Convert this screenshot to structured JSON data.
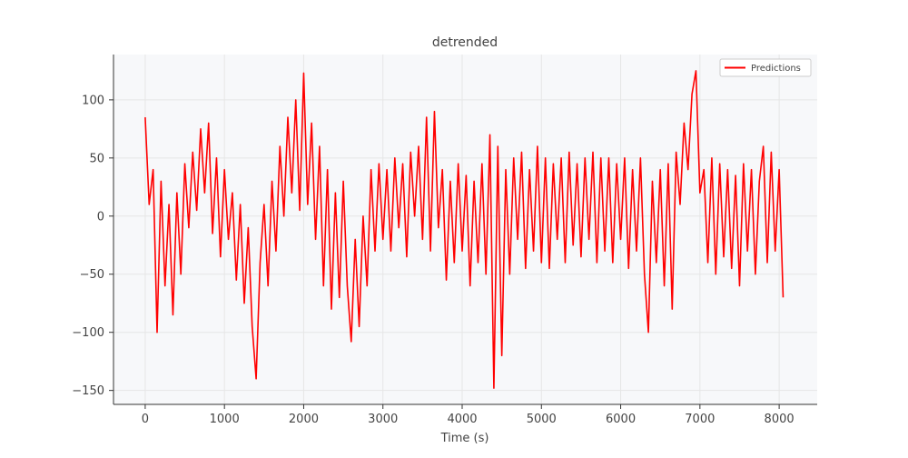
{
  "chart_data": {
    "type": "line",
    "title": "detrended",
    "x_label": "Time (s)",
    "x": [
      0,
      50,
      100,
      150,
      200,
      250,
      300,
      350,
      400,
      450,
      500,
      550,
      600,
      650,
      700,
      750,
      800,
      850,
      900,
      950,
      1000,
      1050,
      1100,
      1150,
      1200,
      1250,
      1300,
      1350,
      1400,
      1450,
      1500,
      1550,
      1600,
      1650,
      1700,
      1750,
      1800,
      1850,
      1900,
      1950,
      2000,
      2050,
      2100,
      2150,
      2200,
      2250,
      2300,
      2350,
      2400,
      2450,
      2500,
      2550,
      2600,
      2650,
      2700,
      2750,
      2800,
      2850,
      2900,
      2950,
      3000,
      3050,
      3100,
      3150,
      3200,
      3250,
      3300,
      3350,
      3400,
      3450,
      3500,
      3550,
      3600,
      3650,
      3700,
      3750,
      3800,
      3850,
      3900,
      3950,
      4000,
      4050,
      4100,
      4150,
      4200,
      4250,
      4300,
      4350,
      4400,
      4450,
      4500,
      4550,
      4600,
      4650,
      4700,
      4750,
      4800,
      4850,
      4900,
      4950,
      5000,
      5050,
      5100,
      5150,
      5200,
      5250,
      5300,
      5350,
      5400,
      5450,
      5500,
      5550,
      5600,
      5650,
      5700,
      5750,
      5800,
      5850,
      5900,
      5950,
      6000,
      6050,
      6100,
      6150,
      6200,
      6250,
      6300,
      6350,
      6400,
      6450,
      6500,
      6550,
      6600,
      6650,
      6700,
      6750,
      6800,
      6850,
      6900,
      6950,
      7000,
      7050,
      7100,
      7150,
      7200,
      7250,
      7300,
      7350,
      7400,
      7450,
      7500,
      7550,
      7600,
      7650,
      7700,
      7750,
      7800,
      7850,
      7900,
      7950,
      8000,
      8050
    ],
    "series": [
      {
        "name": "Predictions",
        "color": "#ff0000",
        "values": [
          85,
          10,
          40,
          -100,
          30,
          -60,
          10,
          -85,
          20,
          -50,
          45,
          -10,
          55,
          5,
          75,
          20,
          80,
          -15,
          50,
          -35,
          40,
          -20,
          20,
          -55,
          10,
          -75,
          -10,
          -95,
          -140,
          -40,
          10,
          -60,
          30,
          -30,
          60,
          0,
          85,
          20,
          100,
          5,
          123,
          10,
          80,
          -20,
          60,
          -60,
          40,
          -80,
          20,
          -70,
          30,
          -60,
          -108,
          -20,
          -95,
          0,
          -60,
          40,
          -30,
          45,
          -20,
          40,
          -30,
          50,
          -10,
          45,
          -35,
          55,
          0,
          60,
          -20,
          85,
          -30,
          90,
          -10,
          40,
          -55,
          30,
          -40,
          45,
          -30,
          35,
          -60,
          30,
          -40,
          45,
          -50,
          70,
          -148,
          60,
          -120,
          40,
          -50,
          50,
          -20,
          55,
          -45,
          40,
          -30,
          60,
          -40,
          50,
          -45,
          45,
          -20,
          50,
          -40,
          55,
          -25,
          45,
          -35,
          50,
          -20,
          55,
          -40,
          50,
          -30,
          50,
          -40,
          45,
          -20,
          50,
          -45,
          40,
          -30,
          50,
          -50,
          -100,
          30,
          -40,
          40,
          -60,
          45,
          -80,
          55,
          10,
          80,
          40,
          105,
          125,
          20,
          40,
          -40,
          50,
          -50,
          45,
          -35,
          40,
          -45,
          35,
          -60,
          45,
          -30,
          40,
          -50,
          30,
          60,
          -40,
          55,
          -30,
          40,
          -70
        ]
      }
    ],
    "xlim": [
      -400,
      8480
    ],
    "ylim": [
      -162,
      139
    ],
    "xticks": [
      0,
      1000,
      2000,
      3000,
      4000,
      5000,
      6000,
      7000,
      8000
    ],
    "yticks": [
      {
        "value": -150,
        "label": "−150"
      },
      {
        "value": -100,
        "label": "−100"
      },
      {
        "value": -50,
        "label": "−50"
      },
      0,
      50,
      100
    ],
    "grid": true,
    "legend": "upper right"
  }
}
